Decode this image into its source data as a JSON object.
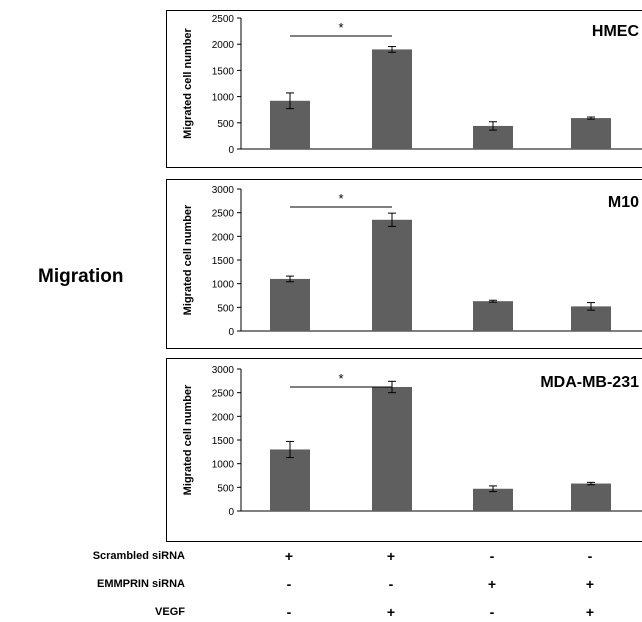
{
  "figure": {
    "side_label": "Migration",
    "conditions": [
      {
        "label": "Scrambled siRNA",
        "values": [
          "+",
          "+",
          "-",
          "-"
        ]
      },
      {
        "label": "EMMPRIN siRNA",
        "values": [
          "-",
          "-",
          "+",
          "+"
        ]
      },
      {
        "label": "VEGF",
        "values": [
          "-",
          "+",
          "-",
          "+"
        ]
      }
    ]
  },
  "chart_data": [
    {
      "type": "bar",
      "title": "HMEC",
      "ylabel": "Migrated cell number",
      "ylim": [
        0,
        2500
      ],
      "yticks": [
        0,
        500,
        1000,
        1500,
        2000,
        2500
      ],
      "values": [
        920,
        1900,
        440,
        590
      ],
      "errors": [
        150,
        55,
        80,
        20
      ],
      "bar_color": "#5f5f5f",
      "significance": {
        "from": 0,
        "to": 1,
        "label": "*"
      }
    },
    {
      "type": "bar",
      "title": "M10",
      "ylabel": "Migrated cell number",
      "ylim": [
        0,
        3000
      ],
      "yticks": [
        0,
        500,
        1000,
        1500,
        2000,
        2500,
        3000
      ],
      "values": [
        1100,
        2350,
        630,
        520
      ],
      "errors": [
        60,
        140,
        20,
        80
      ],
      "bar_color": "#5f5f5f",
      "significance": {
        "from": 0,
        "to": 1,
        "label": "*"
      }
    },
    {
      "type": "bar",
      "title": "MDA-MB-231",
      "ylabel": "Migrated cell number",
      "ylim": [
        0,
        3000
      ],
      "yticks": [
        0,
        500,
        1000,
        1500,
        2000,
        2500,
        3000
      ],
      "values": [
        1300,
        2620,
        470,
        580
      ],
      "errors": [
        170,
        120,
        60,
        25
      ],
      "bar_color": "#5f5f5f",
      "significance": {
        "from": 0,
        "to": 1,
        "label": "*"
      }
    }
  ]
}
